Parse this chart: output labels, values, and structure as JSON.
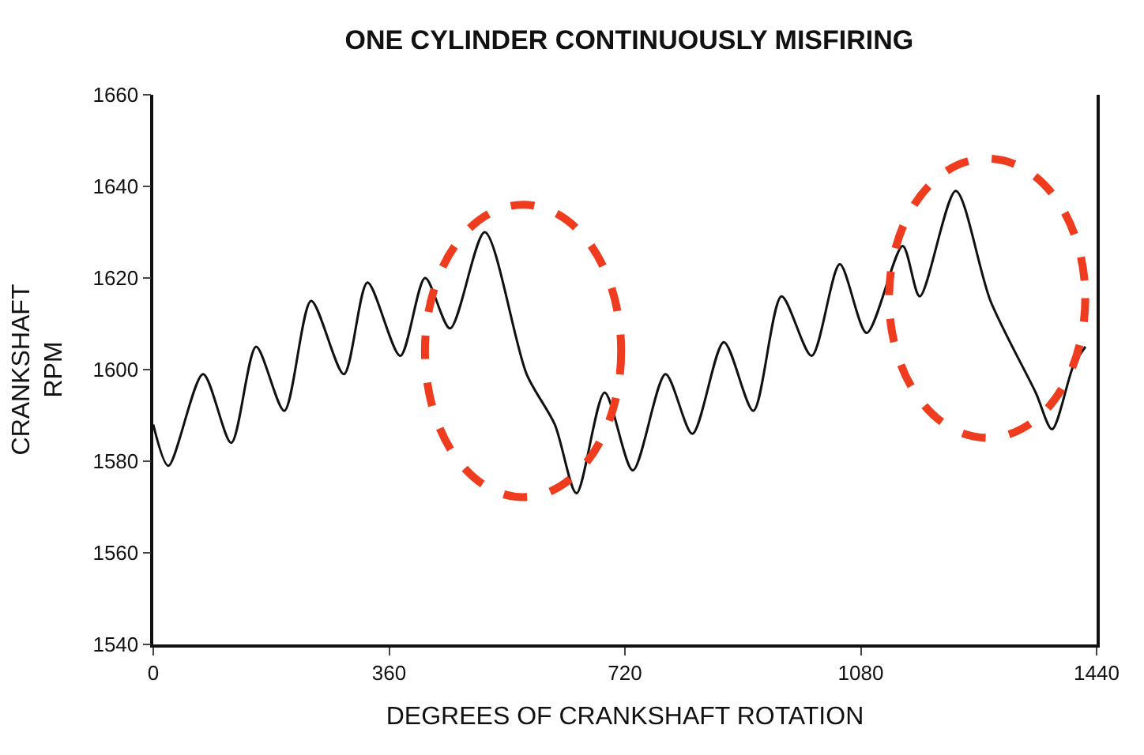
{
  "chart_data": {
    "type": "line",
    "title": "ONE CYLINDER CONTINUOUSLY MISFIRING",
    "xlabel": "DEGREES OF CRANKSHAFT ROTATION",
    "ylabel": "CRANKSHAFT\nRPM",
    "x": [
      0,
      23,
      76,
      119,
      157,
      200,
      241,
      291,
      327,
      377,
      415,
      453,
      506,
      570,
      613,
      646,
      689,
      732,
      782,
      823,
      871,
      916,
      959,
      1005,
      1048,
      1089,
      1144,
      1170,
      1225,
      1278,
      1347,
      1372,
      1405,
      1423
    ],
    "series": [
      {
        "color": "#111111",
        "values": [
          1588,
          1579,
          1599,
          1584,
          1605,
          1591,
          1615,
          1599,
          1619,
          1603,
          1620,
          1609,
          1630,
          1599,
          1588,
          1573,
          1595,
          1578,
          1599,
          1586,
          1606,
          1591,
          1616,
          1603,
          1623,
          1608,
          1627,
          1616,
          1639,
          1615,
          1595,
          1587,
          1601,
          1605
        ]
      }
    ],
    "xlim": [
      0,
      1440
    ],
    "xticks": [
      0,
      360,
      720,
      1080,
      1440
    ],
    "ylim": [
      1540,
      1660
    ],
    "yticks": [
      1540,
      1560,
      1580,
      1600,
      1620,
      1640,
      1660
    ],
    "marker": "none",
    "line_style": "solid"
  }
}
